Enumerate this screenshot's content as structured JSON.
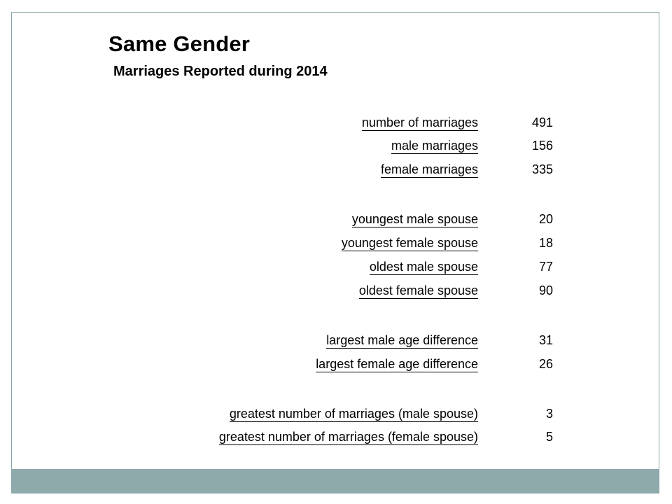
{
  "title": "Same Gender",
  "subtitle": "Marriages Reported during 2014",
  "stats": [
    {
      "label": "number of marriages",
      "value": "491"
    },
    {
      "label": "male marriages",
      "value": "156"
    },
    {
      "label": "female marriages",
      "value": "335"
    },
    {
      "label": "youngest male spouse",
      "value": "20"
    },
    {
      "label": "youngest female spouse",
      "value": "18"
    },
    {
      "label": "oldest male spouse",
      "value": "77"
    },
    {
      "label": "oldest female spouse",
      "value": "90"
    },
    {
      "label": "largest male age difference",
      "value": "31"
    },
    {
      "label": "largest female age difference",
      "value": "26"
    },
    {
      "label": "greatest number of marriages (male spouse)",
      "value": "3"
    },
    {
      "label": "greatest number of marriages (female spouse)",
      "value": "5"
    }
  ],
  "colors": {
    "footer_bar": "#8eaaab",
    "border": "#8aa8aa"
  }
}
